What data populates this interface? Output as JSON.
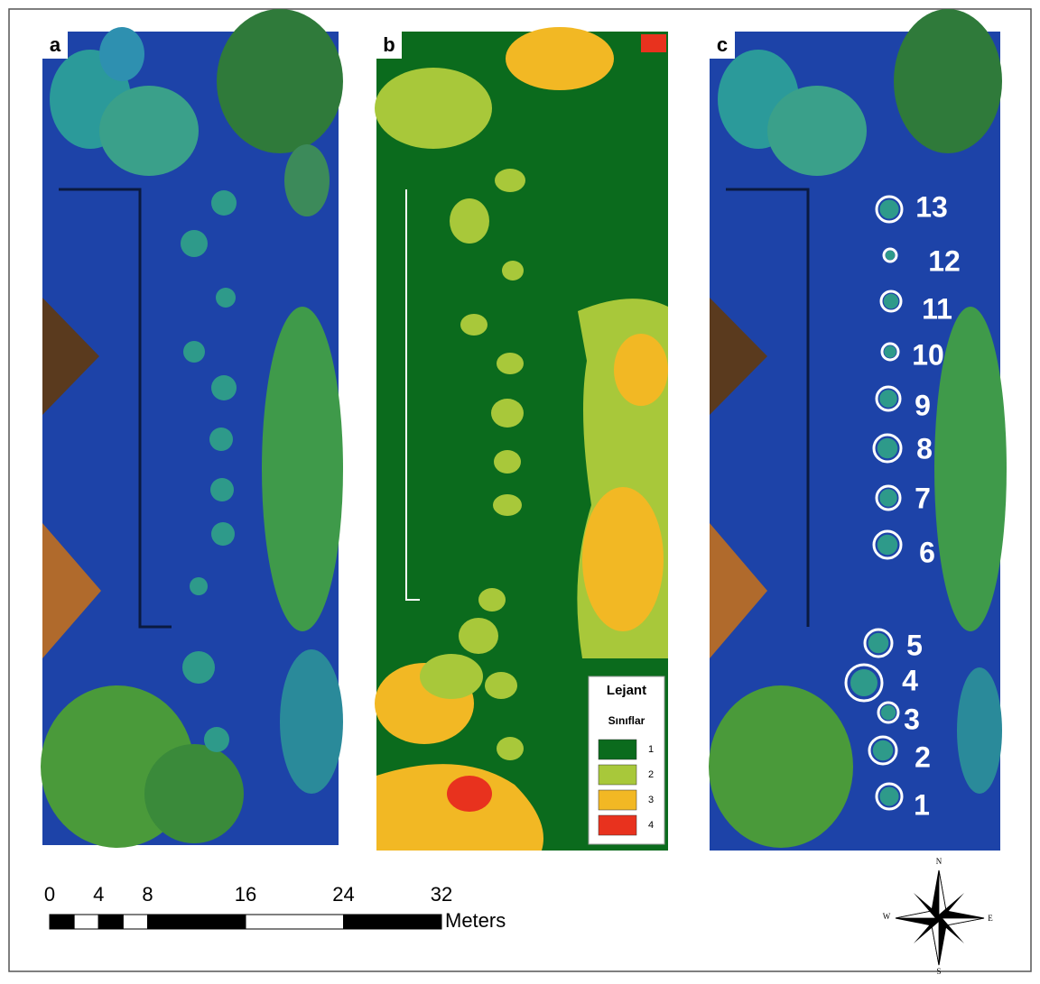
{
  "panels": [
    "a",
    "b",
    "c"
  ],
  "legend": {
    "title": "Lejant",
    "subtitle": "Sınıflar",
    "classes": [
      {
        "label": "1",
        "color": "#0b6b1d"
      },
      {
        "label": "2",
        "color": "#a8c83a"
      },
      {
        "label": "3",
        "color": "#f2b824"
      },
      {
        "label": "4",
        "color": "#e8321e"
      }
    ]
  },
  "tree_labels": [
    "13",
    "12",
    "11",
    "10",
    "9",
    "8",
    "7",
    "6",
    "5",
    "4",
    "3",
    "2",
    "1"
  ],
  "scale_bar": {
    "ticks": [
      0,
      4,
      8,
      16,
      24,
      32
    ],
    "unit": "Meters"
  },
  "compass": {
    "north": "N",
    "south": "S",
    "east": "E",
    "west": "W"
  }
}
